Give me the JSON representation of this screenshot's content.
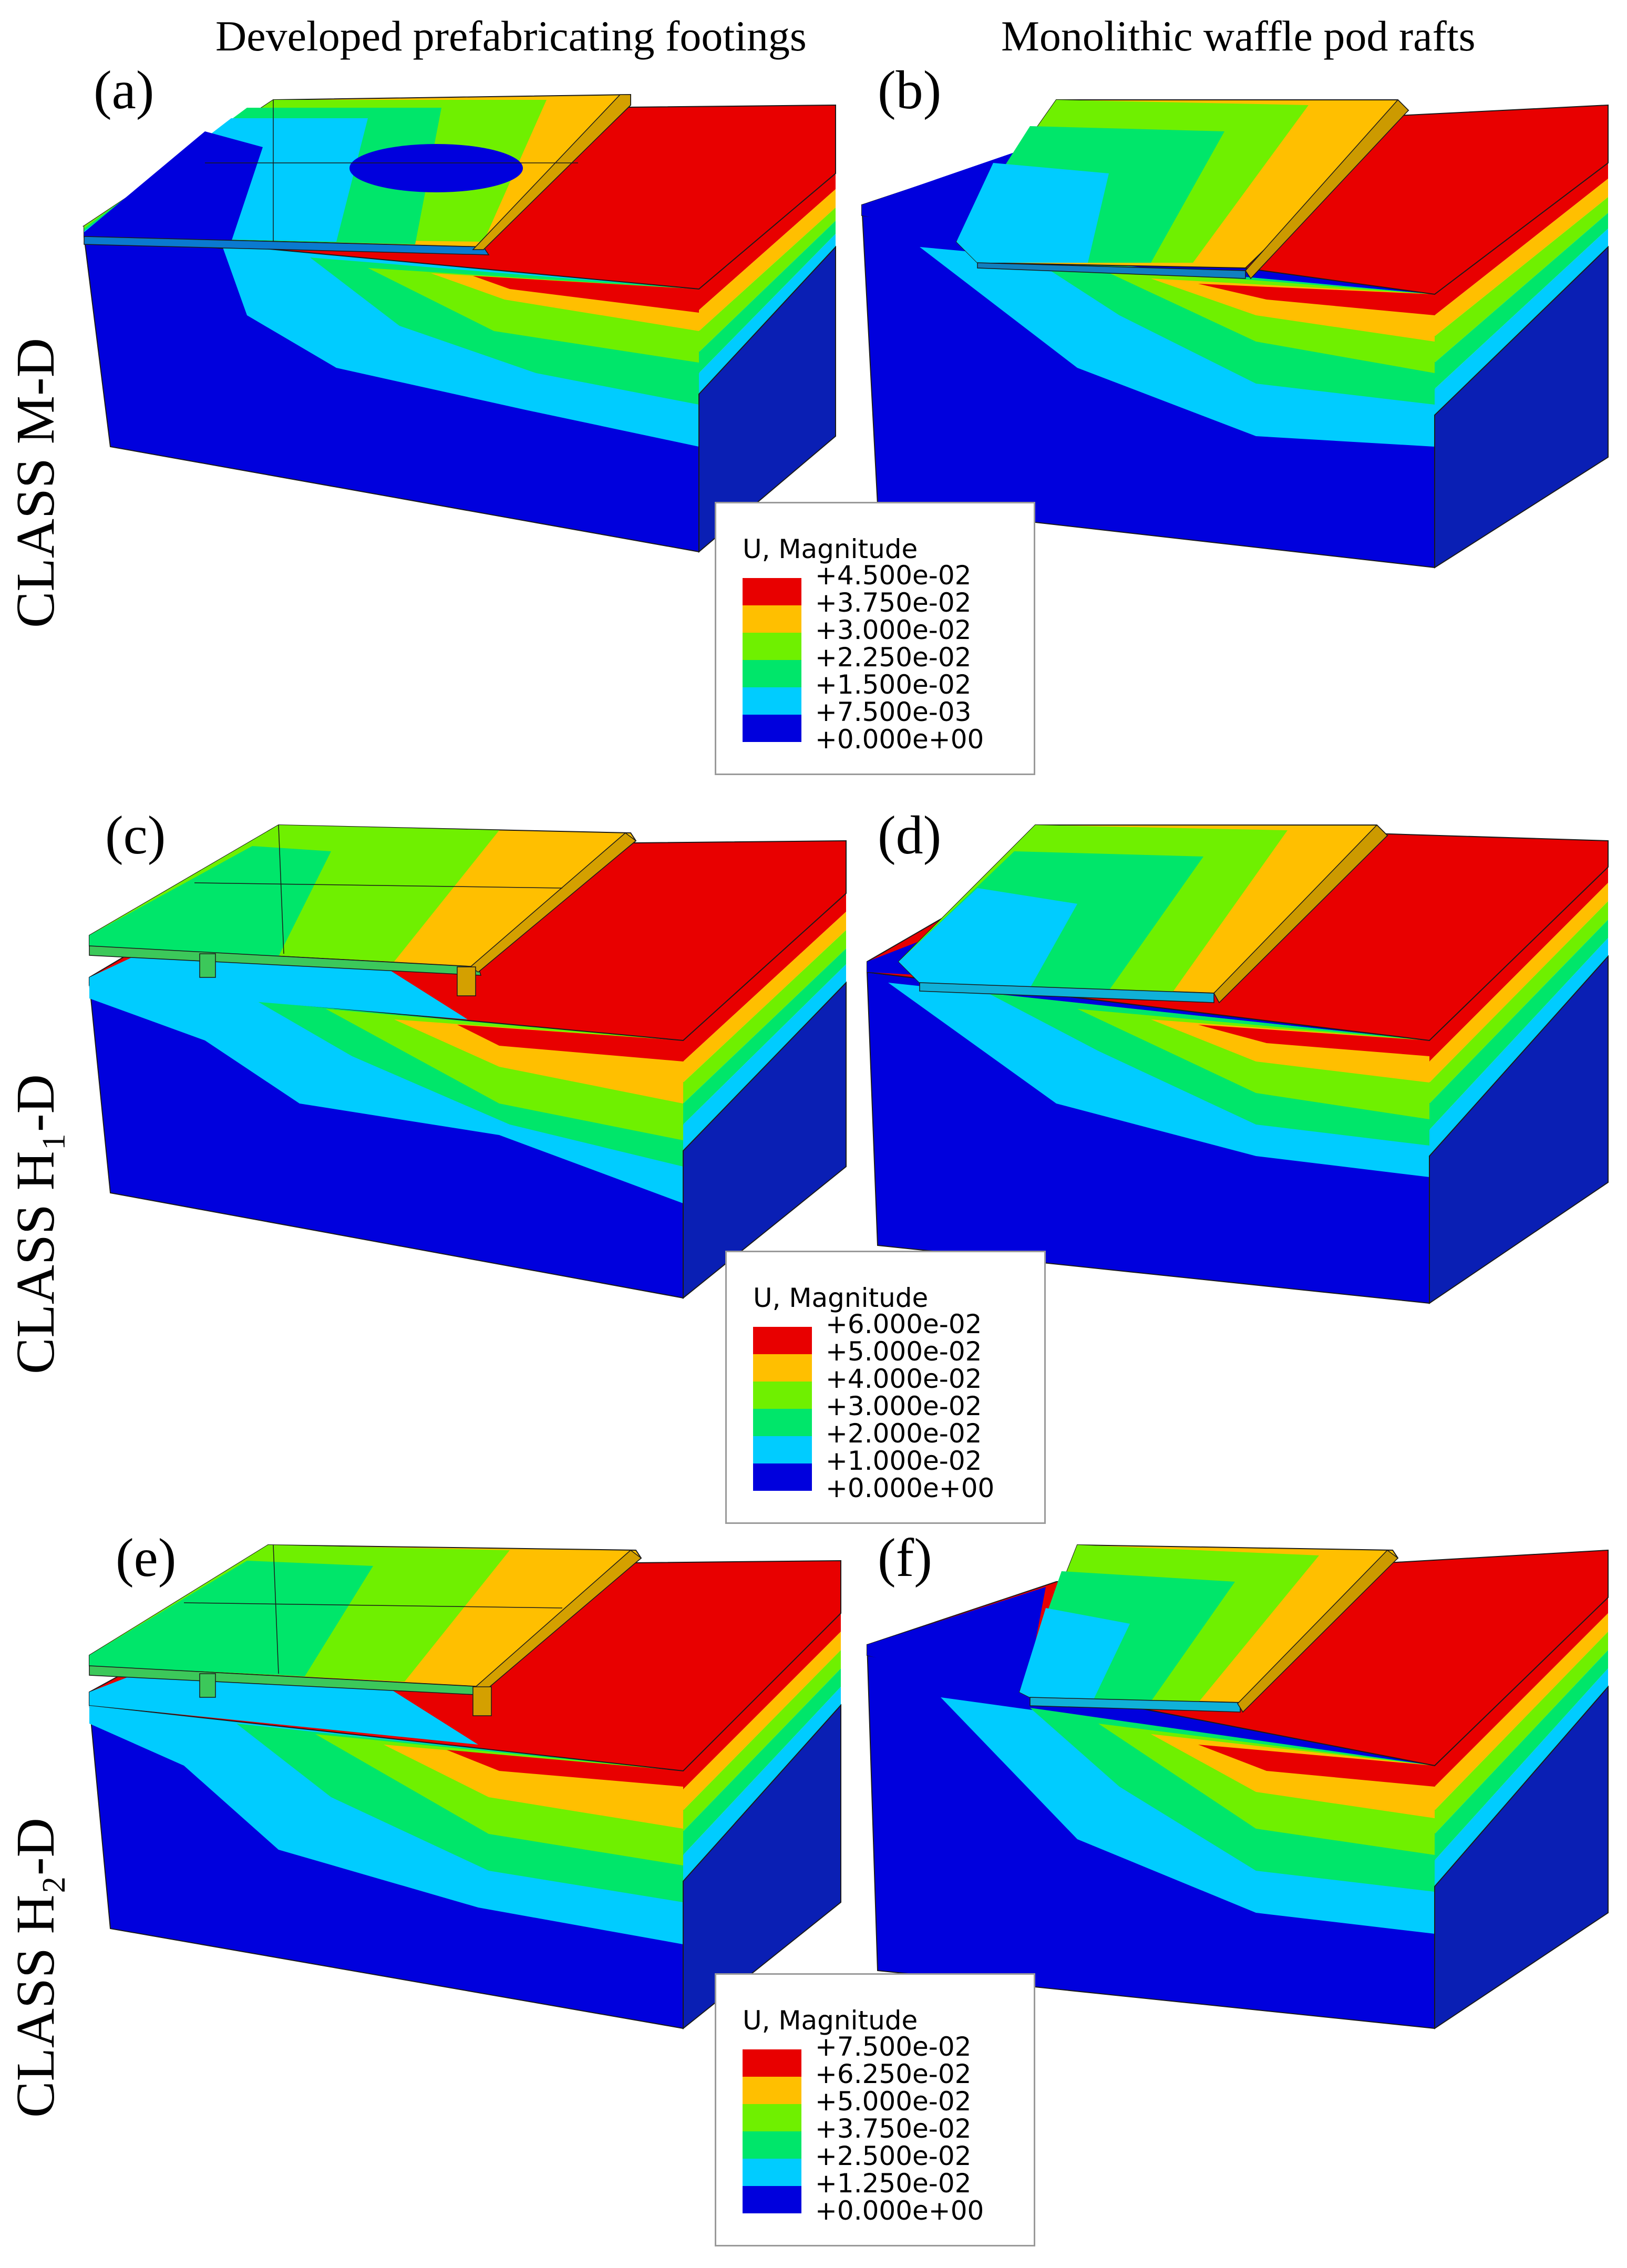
{
  "column_titles": [
    "Developed prefabricating footings",
    "Monolithic waffle pod rafts"
  ],
  "row_labels": [
    "CLASS M-D",
    "CLASS H₁-D",
    "CLASS H₂-D"
  ],
  "panel_labels": [
    "(a)",
    "(b)",
    "(c)",
    "(d)",
    "(e)",
    "(f)"
  ],
  "legends": [
    {
      "title": "U, Magnitude",
      "values": [
        "+4.500e-02",
        "+3.750e-02",
        "+3.000e-02",
        "+2.250e-02",
        "+1.500e-02",
        "+7.500e-03",
        "+0.000e+00"
      ]
    },
    {
      "title": "U, Magnitude",
      "values": [
        "+6.000e-02",
        "+5.000e-02",
        "+4.000e-02",
        "+3.000e-02",
        "+2.000e-02",
        "+1.000e-02",
        "+0.000e+00"
      ]
    },
    {
      "title": "U, Magnitude",
      "values": [
        "+7.500e-02",
        "+6.250e-02",
        "+5.000e-02",
        "+3.750e-02",
        "+2.500e-02",
        "+1.250e-02",
        "+0.000e+00"
      ]
    }
  ],
  "colors": {
    "contour_bands": [
      "#e80000",
      "#ffbf00",
      "#6ff000",
      "#00e66a",
      "#00ccff",
      "#0053ff",
      "#0000dd"
    ],
    "side_dark_blue": "#0a1fb4",
    "edge": "#1a1a1a"
  }
}
